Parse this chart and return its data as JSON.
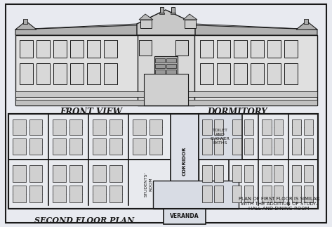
{
  "bg": "#e8eaf0",
  "paper": "#f0f0f0",
  "lc": "#1a1a1a",
  "dark": "#333333",
  "roof_fill": "#b0b0b0",
  "wall_fill": "#e0e0e0",
  "title_front": "FRONT VIEW",
  "title_dorm": "DORMITORY",
  "title_plan": "SECOND FLOOR PLAN",
  "note_text": "PLAN OF FIRST FLOOR IS SIMILAR\nWITH THE ADDITION OF STUDY-\nHALL AND DINING-ROOM",
  "label_corridor": "CORRIDOR",
  "label_toilet": "TOILET\nAND\nSHOWER\nBATHS",
  "label_students_room": "STUDENTS'\nROOM",
  "label_veranda": "VERANDA"
}
